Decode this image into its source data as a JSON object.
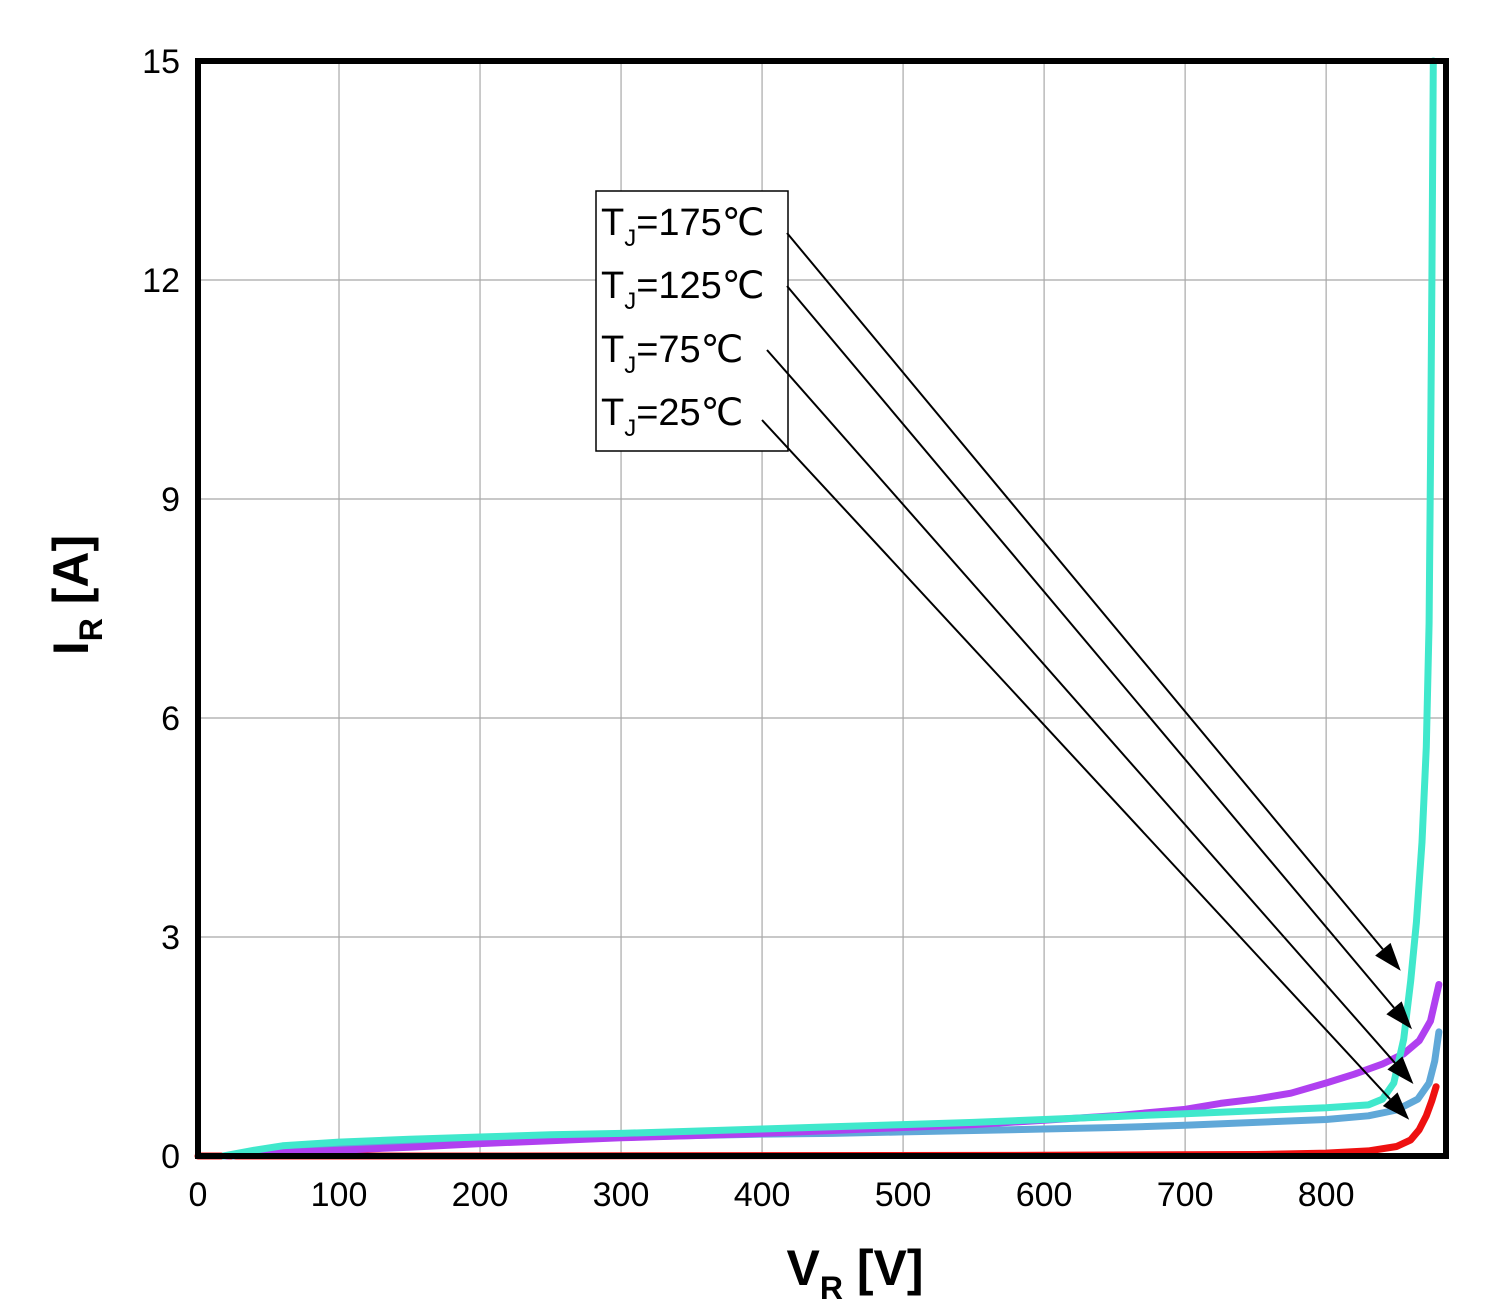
{
  "chart_data": {
    "type": "line",
    "xlabel": "V",
    "xlabel_sub": "R",
    "xlabel_unit": " [V]",
    "ylabel": "I",
    "ylabel_sub": "R",
    "ylabel_unit": " [A]",
    "xlim": [
      0,
      885
    ],
    "ylim": [
      0,
      15
    ],
    "xticks": [
      0,
      100,
      200,
      300,
      400,
      500,
      600,
      700,
      800
    ],
    "yticks": [
      0,
      3,
      6,
      9,
      12,
      15
    ],
    "grid": true,
    "legend_placement": "upper-middle",
    "series": [
      {
        "name": "175℃",
        "prefix": "T",
        "prefix_sub": "J",
        "color": "#40e8cc",
        "points": [
          [
            18,
            0
          ],
          [
            40,
            0.08
          ],
          [
            60,
            0.14
          ],
          [
            100,
            0.19
          ],
          [
            150,
            0.23
          ],
          [
            200,
            0.26
          ],
          [
            250,
            0.29
          ],
          [
            300,
            0.31
          ],
          [
            350,
            0.34
          ],
          [
            400,
            0.37
          ],
          [
            450,
            0.4
          ],
          [
            500,
            0.43
          ],
          [
            550,
            0.46
          ],
          [
            600,
            0.5
          ],
          [
            650,
            0.54
          ],
          [
            700,
            0.58
          ],
          [
            750,
            0.62
          ],
          [
            800,
            0.66
          ],
          [
            830,
            0.7
          ],
          [
            840,
            0.78
          ],
          [
            848,
            1.0
          ],
          [
            855,
            1.6
          ],
          [
            860,
            2.4
          ],
          [
            864,
            3.2
          ],
          [
            868,
            4.3
          ],
          [
            871,
            5.6
          ],
          [
            873,
            7.3
          ],
          [
            874,
            9.5
          ],
          [
            875,
            12.0
          ],
          [
            876,
            15.0
          ]
        ]
      },
      {
        "name": "125℃",
        "prefix": "T",
        "prefix_sub": "J",
        "color": "#b040f0",
        "points": [
          [
            18,
            0
          ],
          [
            50,
            0.04
          ],
          [
            100,
            0.08
          ],
          [
            150,
            0.12
          ],
          [
            200,
            0.17
          ],
          [
            250,
            0.21
          ],
          [
            300,
            0.25
          ],
          [
            350,
            0.28
          ],
          [
            400,
            0.31
          ],
          [
            450,
            0.35
          ],
          [
            500,
            0.39
          ],
          [
            550,
            0.43
          ],
          [
            600,
            0.49
          ],
          [
            650,
            0.55
          ],
          [
            700,
            0.64
          ],
          [
            725,
            0.72
          ],
          [
            750,
            0.78
          ],
          [
            775,
            0.86
          ],
          [
            800,
            1.0
          ],
          [
            820,
            1.12
          ],
          [
            840,
            1.26
          ],
          [
            855,
            1.4
          ],
          [
            866,
            1.58
          ],
          [
            874,
            1.85
          ],
          [
            880,
            2.35
          ]
        ]
      },
      {
        "name": "75℃",
        "prefix": "T",
        "prefix_sub": "J",
        "color": "#60a8d8",
        "points": [
          [
            25,
            0
          ],
          [
            40,
            0.07
          ],
          [
            60,
            0.13
          ],
          [
            100,
            0.16
          ],
          [
            150,
            0.19
          ],
          [
            200,
            0.22
          ],
          [
            250,
            0.24
          ],
          [
            300,
            0.26
          ],
          [
            350,
            0.28
          ],
          [
            400,
            0.3
          ],
          [
            450,
            0.31
          ],
          [
            500,
            0.33
          ],
          [
            550,
            0.35
          ],
          [
            600,
            0.37
          ],
          [
            650,
            0.39
          ],
          [
            700,
            0.42
          ],
          [
            750,
            0.46
          ],
          [
            800,
            0.5
          ],
          [
            830,
            0.55
          ],
          [
            850,
            0.63
          ],
          [
            865,
            0.78
          ],
          [
            873,
            1.0
          ],
          [
            877,
            1.3
          ],
          [
            880,
            1.7
          ]
        ]
      },
      {
        "name": "25℃",
        "prefix": "T",
        "prefix_sub": "J",
        "color": "#ee1010",
        "points": [
          [
            0,
            0
          ],
          [
            200,
            0
          ],
          [
            400,
            0.005
          ],
          [
            600,
            0.01
          ],
          [
            750,
            0.02
          ],
          [
            800,
            0.04
          ],
          [
            830,
            0.07
          ],
          [
            850,
            0.13
          ],
          [
            860,
            0.22
          ],
          [
            866,
            0.36
          ],
          [
            871,
            0.55
          ],
          [
            875,
            0.76
          ],
          [
            878,
            0.95
          ]
        ]
      }
    ],
    "legend": {
      "entries": [
        {
          "prefix": "T",
          "sub": "J",
          "text": "=175℃"
        },
        {
          "prefix": "T",
          "sub": "J",
          "text": "=125℃"
        },
        {
          "prefix": "T",
          "sub": "J",
          "text": "=75℃"
        },
        {
          "prefix": "T",
          "sub": "J",
          "text": "=25℃"
        }
      ]
    },
    "annotations": [
      {
        "label": "175℃",
        "target": [
          860,
          2.4
        ]
      },
      {
        "label": "125℃",
        "target": [
          868,
          1.6
        ]
      },
      {
        "label": "75℃",
        "target": [
          869,
          0.85
        ]
      },
      {
        "label": "25℃",
        "target": [
          866,
          0.36
        ]
      }
    ]
  }
}
